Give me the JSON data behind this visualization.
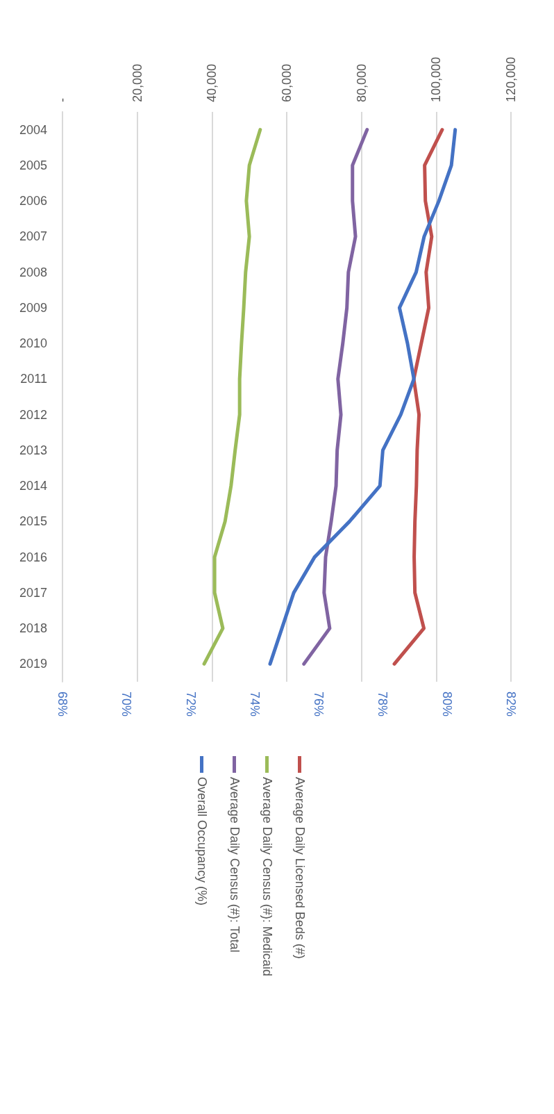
{
  "chart_data": {
    "type": "line",
    "orientation": "horizontal",
    "categories": [
      "2004",
      "2005",
      "2006",
      "2007",
      "2008",
      "2009",
      "2010",
      "2011",
      "2012",
      "2013",
      "2014",
      "2015",
      "2016",
      "2017",
      "2018",
      "2019"
    ],
    "series": [
      {
        "name": "Average Daily Licensed Beds (#)",
        "color": "#c0504d",
        "axis": "x2",
        "values": [
          101600,
          96900,
          97100,
          98800,
          97300,
          98000,
          96000,
          94000,
          95400,
          94900,
          94700,
          94300,
          94100,
          94300,
          96700,
          88800
        ]
      },
      {
        "name": "Average Daily Census (#): Medicaid",
        "color": "#9bbb59",
        "axis": "x2",
        "values": [
          52900,
          50000,
          49200,
          50000,
          49000,
          48500,
          47900,
          47400,
          47400,
          46200,
          45100,
          43500,
          40700,
          40700,
          42900,
          37900
        ]
      },
      {
        "name": "Average Daily Census (#): Total",
        "color": "#8064a2",
        "axis": "x2",
        "values": [
          81500,
          77600,
          77600,
          78400,
          76500,
          76100,
          75000,
          73700,
          74500,
          73500,
          73200,
          71900,
          70400,
          70000,
          71500,
          64600
        ]
      },
      {
        "name": "Overall Occupancy (%)",
        "color": "#4472c4",
        "values": [
          80.26,
          80.14,
          79.75,
          79.29,
          79.04,
          78.52,
          78.77,
          78.97,
          78.56,
          78.0,
          77.91,
          76.96,
          75.87,
          75.22,
          74.85,
          74.48
        ]
      }
    ],
    "xlim": [
      68,
      82
    ],
    "xticks": [
      {
        "value": 68,
        "label": "68%"
      },
      {
        "value": 70,
        "label": "70%"
      },
      {
        "value": 72,
        "label": "72%"
      },
      {
        "value": 74,
        "label": "74%"
      },
      {
        "value": 76,
        "label": "76%"
      },
      {
        "value": 78,
        "label": "78%"
      },
      {
        "value": 80,
        "label": "80%"
      },
      {
        "value": 82,
        "label": "82%"
      }
    ],
    "x2lim": [
      0,
      120000
    ],
    "x2ticks": [
      {
        "value": 0,
        "label": "-"
      },
      {
        "value": 20000,
        "label": "20,000"
      },
      {
        "value": 40000,
        "label": "40,000"
      },
      {
        "value": 60000,
        "label": "60,000"
      },
      {
        "value": 80000,
        "label": "80,000"
      },
      {
        "value": 100000,
        "label": "100,000"
      },
      {
        "value": 120000,
        "label": "120,000"
      }
    ],
    "grid": "x",
    "legend": "bottom",
    "marker": "none",
    "line_style": "solid"
  }
}
